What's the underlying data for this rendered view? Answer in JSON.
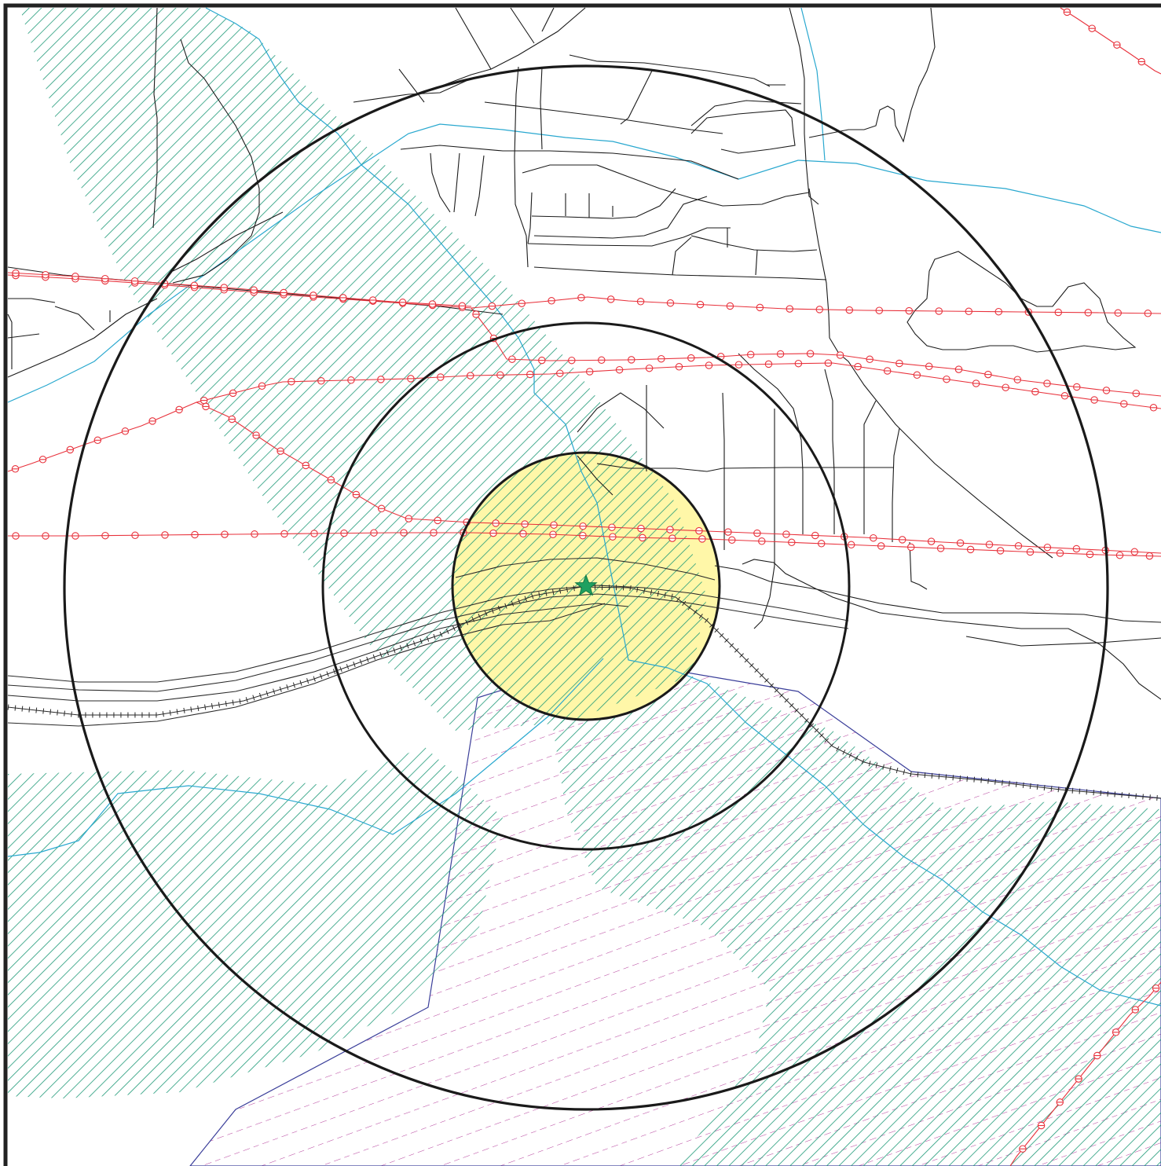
{
  "map": {
    "colors": {
      "background": "#ffffff",
      "frame": "#222222",
      "road": "#1a1a1a",
      "major_road": "#2a2a2a",
      "stream": "#29a8cf",
      "utility_line": "#e8323c",
      "railway": "#2a2a2a",
      "wetland_hatch": "#1f9a78",
      "zone_boundary": "#3b3f9a",
      "zone_hatch": "#b43c9a",
      "ring": "#1a1a1a",
      "inner_zone_fill": "#fff7a8",
      "site_marker": "#1fa060"
    },
    "rings": [
      {
        "name": "inner-buffer"
      },
      {
        "name": "middle-buffer"
      },
      {
        "name": "outer-buffer"
      }
    ],
    "site_marker": {
      "icon": "star-icon"
    }
  }
}
